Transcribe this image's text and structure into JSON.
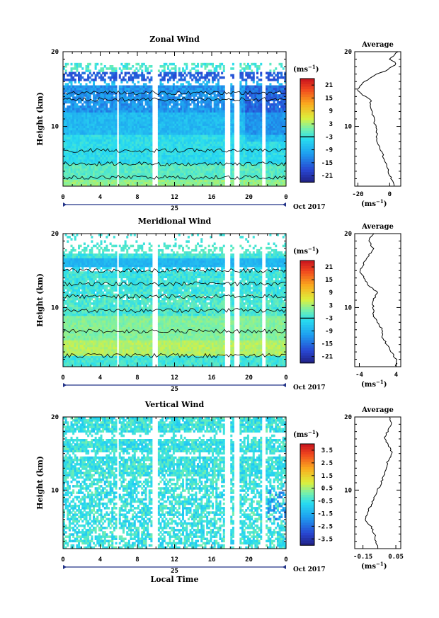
{
  "date_label": "Oct 2017",
  "day_label": "25",
  "footer_xlabel": "Local Time",
  "average_title": "Average",
  "unit": "(ms⁻¹)",
  "height_label": "Height (km)",
  "chart_data": [
    {
      "type": "heatmap",
      "title": "Zonal Wind",
      "xlabel": "",
      "ylabel": "Height (km)",
      "x_ticks": [
        "0",
        "4",
        "8",
        "12",
        "16",
        "20",
        "0"
      ],
      "y_ticks": [
        "20",
        "10"
      ],
      "xlim": [
        0,
        24
      ],
      "ylim": [
        2,
        20
      ],
      "colorbar": {
        "label": "(ms⁻¹)",
        "ticks": [
          "21",
          "15",
          "9",
          "3",
          "-3",
          "-9",
          "-15",
          "-21"
        ],
        "range": [
          -24,
          24
        ]
      },
      "profile": {
        "title": "Average",
        "xlabel": "(ms⁻¹)",
        "x_ticks": [
          "-20",
          "0"
        ],
        "xlim": [
          -22,
          7
        ],
        "height": [
          2,
          3,
          4,
          5,
          6,
          7,
          8,
          9,
          10,
          11,
          12,
          13,
          13.5,
          14,
          14.5,
          15,
          16,
          17,
          17.5,
          18,
          18.5,
          19,
          19.5,
          20
        ],
        "values": [
          3,
          1,
          -1,
          -2,
          -4,
          -6,
          -8,
          -8,
          -9,
          -10,
          -11,
          -12,
          -12,
          -15,
          -19,
          -20,
          -16,
          -8,
          -2,
          2,
          4,
          0,
          3,
          5
        ]
      }
    },
    {
      "type": "heatmap",
      "title": "Meridional Wind",
      "xlabel": "",
      "ylabel": "Height (km)",
      "x_ticks": [
        "0",
        "4",
        "8",
        "12",
        "16",
        "20",
        "0"
      ],
      "y_ticks": [
        "20",
        "10"
      ],
      "xlim": [
        0,
        24
      ],
      "ylim": [
        2,
        20
      ],
      "colorbar": {
        "label": "(ms⁻¹)",
        "ticks": [
          "21",
          "15",
          "9",
          "3",
          "-3",
          "-9",
          "-15",
          "-21"
        ],
        "range": [
          -24,
          24
        ]
      },
      "profile": {
        "title": "Average",
        "xlabel": "(ms⁻¹)",
        "x_ticks": [
          "-4",
          "4"
        ],
        "xlim": [
          -5,
          5
        ],
        "height": [
          2,
          3,
          4,
          5,
          6,
          7,
          8,
          9,
          10,
          11,
          12,
          13,
          14,
          15,
          16,
          17,
          18,
          19,
          20
        ],
        "values": [
          4,
          4,
          3,
          2,
          1,
          1,
          0,
          -1,
          -1,
          -1,
          0,
          -2,
          -3,
          -4,
          -3,
          -2,
          -1,
          -2,
          -1
        ]
      }
    },
    {
      "type": "heatmap",
      "title": "Vertical Wind",
      "xlabel": "Local Time",
      "ylabel": "Height (km)",
      "x_ticks": [
        "0",
        "4",
        "8",
        "12",
        "16",
        "20",
        "0"
      ],
      "y_ticks": [
        "20",
        "10"
      ],
      "xlim": [
        0,
        24
      ],
      "ylim": [
        2,
        20
      ],
      "colorbar": {
        "label": "(ms⁻¹)",
        "ticks": [
          "3.5",
          "2.5",
          "1.5",
          "0.5",
          "-0.5",
          "-1.5",
          "-2.5",
          "-3.5"
        ],
        "range": [
          -4,
          4
        ]
      },
      "profile": {
        "title": "Average",
        "xlabel": "(ms⁻¹)",
        "x_ticks": [
          "-0.15",
          "0.05"
        ],
        "xlim": [
          -0.2,
          0.08
        ],
        "height": [
          2,
          3,
          4,
          5,
          6,
          7,
          8,
          9,
          10,
          11,
          12,
          13,
          14,
          15,
          16,
          17,
          18,
          19,
          20
        ],
        "values": [
          -0.06,
          -0.07,
          -0.08,
          -0.1,
          -0.14,
          -0.12,
          -0.1,
          -0.08,
          -0.06,
          -0.04,
          -0.02,
          -0.01,
          0.0,
          0.03,
          0.01,
          -0.02,
          0.0,
          0.02,
          0.01
        ]
      }
    }
  ]
}
